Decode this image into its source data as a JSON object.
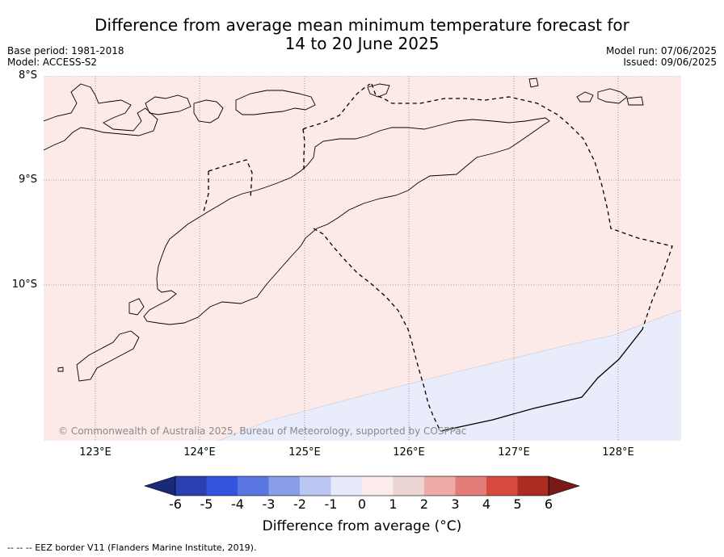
{
  "title_line1": "Difference from average mean minimum temperature forecast for",
  "title_line2": "14 to 20 June 2025",
  "meta_left": [
    "Base period: 1981-2018",
    "Model: ACCESS-S2"
  ],
  "meta_right": [
    "Model run: 07/06/2025",
    "Issued: 09/06/2025"
  ],
  "lat_labels": [
    "8°S",
    "9°S",
    "10°S"
  ],
  "lon_labels": [
    "123°E",
    "124°E",
    "125°E",
    "126°E",
    "127°E",
    "128°E"
  ],
  "copyright": "© Commonwealth of Australia 2025, Bureau of Meteorology, supported by COSPPac",
  "colorbar": {
    "ticks": [
      "-6",
      "-5",
      "-4",
      "-3",
      "-2",
      "-1",
      "0",
      "1",
      "2",
      "3",
      "4",
      "5",
      "6"
    ],
    "colors": [
      "#1a2a7a",
      "#2a40b0",
      "#3355dd",
      "#5a76e2",
      "#8a9ee8",
      "#bcc6f2",
      "#e6eafb",
      "#fbeceb",
      "#ead5d2",
      "#eeaaa6",
      "#e27c76",
      "#d84a40",
      "#ae2b24",
      "#7a1a18"
    ],
    "title": "Difference from average (°C)"
  },
  "fills": {
    "warm": "#fbeae8",
    "cool": "#e8ecfb"
  },
  "footnote": "--  --  -- EEZ border V11 (Flanders Marine Institute, 2019)."
}
